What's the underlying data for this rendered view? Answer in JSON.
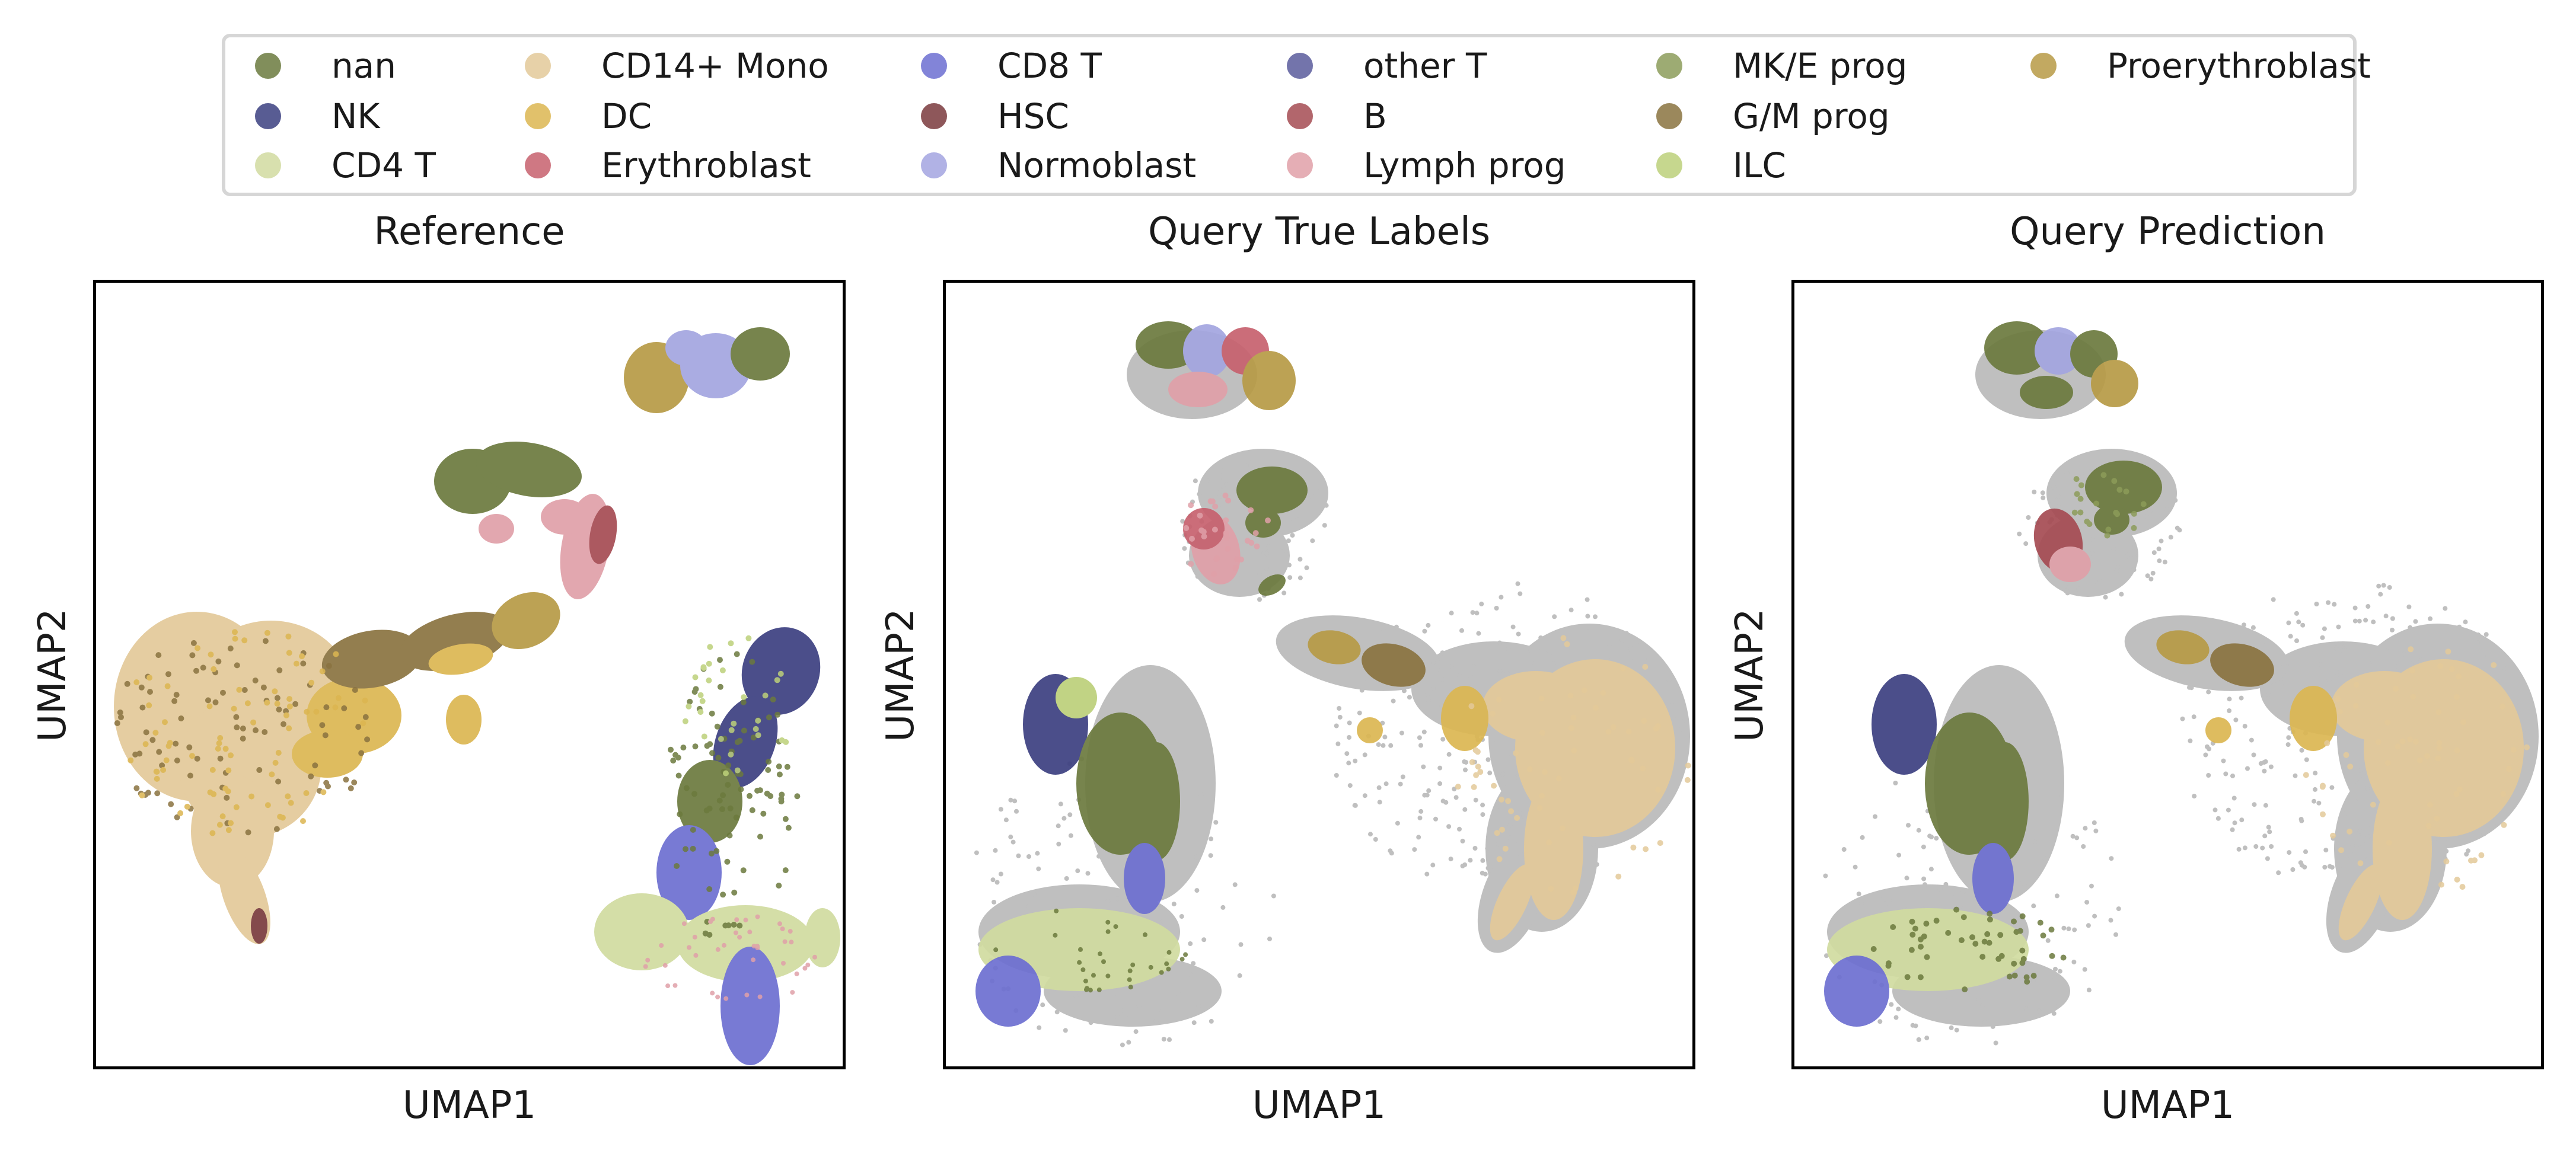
{
  "chart_data": {
    "type": "scatter",
    "legend": {
      "placement": "top-center",
      "entries": [
        {
          "name": "nan",
          "color": "#6b7a3e"
        },
        {
          "name": "NK",
          "color": "#3b3f80"
        },
        {
          "name": "CD4 T",
          "color": "#d1dba0"
        },
        {
          "name": "CD14+ Mono",
          "color": "#e3c999"
        },
        {
          "name": "DC",
          "color": "#dcb651"
        },
        {
          "name": "Erythroblast",
          "color": "#c7606d"
        },
        {
          "name": "CD8 T",
          "color": "#6c6fd1"
        },
        {
          "name": "HSC",
          "color": "#7a3a3d"
        },
        {
          "name": "Normoblast",
          "color": "#a3a5e0"
        },
        {
          "name": "other T",
          "color": "#5a5c9c"
        },
        {
          "name": "B",
          "color": "#a54b52"
        },
        {
          "name": "Lymph prog",
          "color": "#e0a0a8"
        },
        {
          "name": "MK/E prog",
          "color": "#8c9c5a"
        },
        {
          "name": "G/M prog",
          "color": "#8a7340"
        },
        {
          "name": "ILC",
          "color": "#bcd07a"
        },
        {
          "name": "Proerythroblast",
          "color": "#b79a45"
        }
      ]
    },
    "panels": [
      {
        "title": "Reference",
        "xlabel": "UMAP1",
        "ylabel": "UMAP2",
        "ticks": "none"
      },
      {
        "title": "Query True Labels",
        "xlabel": "UMAP1",
        "ylabel": "UMAP2",
        "ticks": "none"
      },
      {
        "title": "Query Prediction",
        "xlabel": "UMAP1",
        "ylabel": "UMAP2",
        "ticks": "none"
      }
    ],
    "unlabeled_color": "#8a8a8a"
  }
}
